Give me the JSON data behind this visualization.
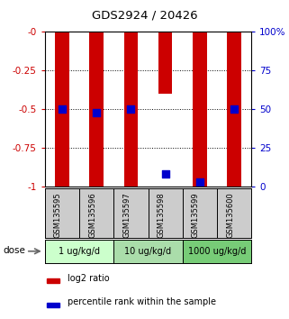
{
  "title": "GDS2924 / 20426",
  "samples": [
    "GSM135595",
    "GSM135596",
    "GSM135597",
    "GSM135598",
    "GSM135599",
    "GSM135600"
  ],
  "log2_ratios": [
    -1.0,
    -1.0,
    -1.0,
    -0.4,
    -1.0,
    -1.0
  ],
  "percentile_ranks": [
    50,
    48,
    50,
    8,
    3,
    50
  ],
  "doses": [
    {
      "label": "1 ug/kg/d",
      "start": 0,
      "end": 1,
      "color": "#ccffcc"
    },
    {
      "label": "10 ug/kg/d",
      "start": 2,
      "end": 3,
      "color": "#aaddaa"
    },
    {
      "label": "1000 ug/kg/d",
      "start": 4,
      "end": 5,
      "color": "#77cc77"
    }
  ],
  "ylim_left": [
    -1.0,
    0.0
  ],
  "ylim_right": [
    0,
    100
  ],
  "yticks_left": [
    0.0,
    -0.25,
    -0.5,
    -0.75,
    -1.0
  ],
  "yticks_left_labels": [
    "-0",
    "-0.25",
    "-0.5",
    "-0.75",
    "-1"
  ],
  "yticks_right": [
    100,
    75,
    50,
    25,
    0
  ],
  "yticks_right_labels": [
    "100%",
    "75",
    "50",
    "25",
    "0"
  ],
  "bar_color": "#cc0000",
  "dot_color": "#0000cc",
  "bar_width": 0.4,
  "dot_size": 35,
  "background_color": "#ffffff",
  "plot_bg": "#ffffff",
  "left_label_color": "#cc0000",
  "right_label_color": "#0000cc",
  "sample_bg": "#cccccc",
  "dose_label": "dose"
}
